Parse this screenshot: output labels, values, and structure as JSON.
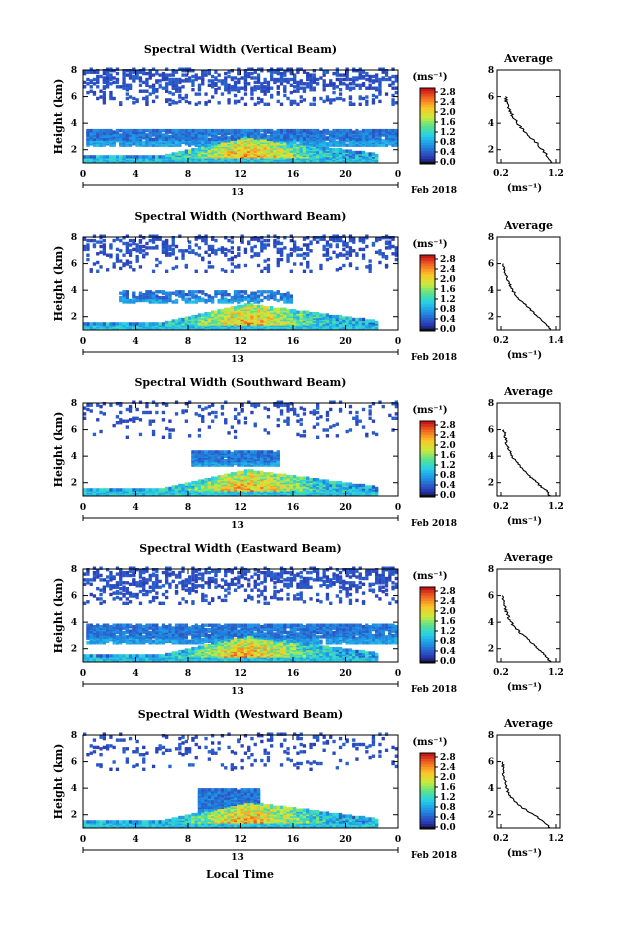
{
  "common": {
    "height_label": "Height (km)",
    "time_ticks": [
      "0",
      "4",
      "8",
      "12",
      "16",
      "20",
      "0"
    ],
    "day_label": "13",
    "date_label": "Feb 2018",
    "colorbar_unit": "(ms⁻¹)",
    "colorbar_ticks": [
      "0.0",
      "0.4",
      "0.8",
      "1.2",
      "1.6",
      "2.0",
      "2.4",
      "2.8"
    ],
    "average_title": "Average",
    "average_unit": "(ms⁻¹)",
    "x_axis_label": "Local Time",
    "height_ticks": [
      "2",
      "4",
      "6",
      "8"
    ]
  },
  "chart_data": [
    {
      "type": "heatmap",
      "title": "Spectral Width (Vertical Beam)",
      "xlabel": "Local Time",
      "ylabel": "Height (km)",
      "xlim": [
        0,
        24
      ],
      "ylim": [
        1,
        8
      ],
      "zlim": [
        0,
        2.8
      ],
      "profile": {
        "title": "Average",
        "xlim": [
          0.2,
          1.2
        ],
        "xticks": [
          "0.2",
          "1.2"
        ],
        "heights": [
          1,
          1.5,
          2,
          2.5,
          3,
          3.5,
          4,
          4.5,
          5,
          5.5,
          6
        ],
        "values": [
          1.15,
          1.05,
          0.95,
          0.85,
          0.72,
          0.6,
          0.5,
          0.42,
          0.35,
          0.3,
          0.28
        ]
      }
    },
    {
      "type": "heatmap",
      "title": "Spectral Width (Northward Beam)",
      "xlabel": "Local Time",
      "ylabel": "Height (km)",
      "xlim": [
        0,
        24
      ],
      "ylim": [
        1,
        8
      ],
      "zlim": [
        0,
        2.8
      ],
      "profile": {
        "title": "Average",
        "xlim": [
          0.2,
          1.4
        ],
        "xticks": [
          "0.2",
          "1.4"
        ],
        "heights": [
          1,
          1.5,
          2,
          2.5,
          3,
          3.5,
          4,
          4.5,
          5,
          5.5,
          6
        ],
        "values": [
          1.3,
          1.15,
          1.0,
          0.85,
          0.7,
          0.55,
          0.45,
          0.38,
          0.32,
          0.28,
          0.25
        ]
      }
    },
    {
      "type": "heatmap",
      "title": "Spectral Width (Southward Beam)",
      "xlabel": "Local Time",
      "ylabel": "Height (km)",
      "xlim": [
        0,
        24
      ],
      "ylim": [
        1,
        8
      ],
      "zlim": [
        0,
        2.8
      ],
      "profile": {
        "title": "Average",
        "xlim": [
          0.2,
          1.2
        ],
        "xticks": [
          "0.2",
          "1.2"
        ],
        "heights": [
          1,
          1.5,
          2,
          2.5,
          3,
          3.5,
          4,
          4.5,
          5,
          5.5,
          6
        ],
        "values": [
          1.1,
          1.0,
          0.85,
          0.72,
          0.6,
          0.5,
          0.4,
          0.35,
          0.3,
          0.28,
          0.25
        ]
      }
    },
    {
      "type": "heatmap",
      "title": "Spectral Width (Eastward Beam)",
      "xlabel": "Local Time",
      "ylabel": "Height (km)",
      "xlim": [
        0,
        24
      ],
      "ylim": [
        1,
        8
      ],
      "zlim": [
        0,
        2.8
      ],
      "profile": {
        "title": "Average",
        "xlim": [
          0.2,
          1.2
        ],
        "xticks": [
          "0.2",
          "1.2"
        ],
        "heights": [
          1,
          1.5,
          2,
          2.5,
          3,
          3.5,
          4,
          4.5,
          5,
          5.5,
          6
        ],
        "values": [
          1.1,
          1.0,
          0.88,
          0.75,
          0.6,
          0.48,
          0.38,
          0.32,
          0.28,
          0.25,
          0.22
        ]
      }
    },
    {
      "type": "heatmap",
      "title": "Spectral Width (Westward Beam)",
      "xlabel": "Local Time",
      "ylabel": "Height (km)",
      "xlim": [
        0,
        24
      ],
      "ylim": [
        1,
        8
      ],
      "zlim": [
        0,
        2.8
      ],
      "profile": {
        "title": "Average",
        "xlim": [
          0.2,
          1.2
        ],
        "xticks": [
          "0.2",
          "1.2"
        ],
        "heights": [
          1,
          1.5,
          2,
          2.5,
          3,
          3.5,
          4,
          4.5,
          5,
          5.5,
          6
        ],
        "values": [
          1.1,
          0.95,
          0.8,
          0.6,
          0.45,
          0.35,
          0.3,
          0.27,
          0.25,
          0.24,
          0.22
        ]
      }
    }
  ]
}
